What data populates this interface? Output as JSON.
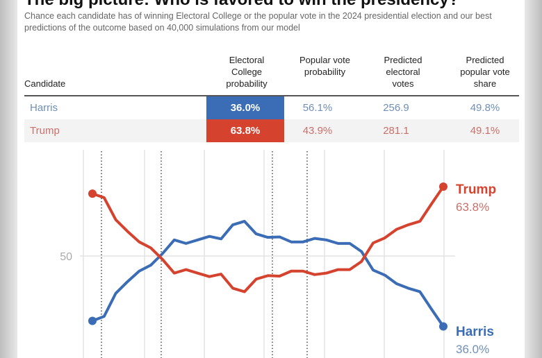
{
  "header": {
    "title": "The big picture: Who is favored to win the presidency?",
    "subtitle": "Chance each candidate has of winning Electoral College or the popular vote in the 2024 presidential election and our best predictions of the outcome based on 40,000 simulations from our model"
  },
  "table": {
    "columns": [
      "Candidate",
      "Electoral College probability",
      "Popular vote probability",
      "Predicted electoral votes",
      "Predicted popular vote share"
    ],
    "rows": [
      {
        "candidate": "Harris",
        "ec": "36.0%",
        "pv": "56.1%",
        "ev": "256.9",
        "share": "49.8%"
      },
      {
        "candidate": "Trump",
        "ec": "63.8%",
        "pv": "43.9%",
        "ev": "281.1",
        "share": "49.1%"
      }
    ]
  },
  "colors": {
    "harris": "#3a6db5",
    "trump": "#d5432f",
    "harris_text": "#6f8fb5",
    "trump_text": "#c9706a"
  },
  "chart_data": {
    "type": "line",
    "ylabel": "",
    "y_tick_labels": [
      "50"
    ],
    "grid": true,
    "legend": "end-labels-right",
    "series": [
      {
        "name": "Harris",
        "end_label": "36.0%",
        "values": [
          37.1,
          38.0,
          42.6,
          44.9,
          47.0,
          48.2,
          50.5,
          53.2,
          52.5,
          53.2,
          53.9,
          53.4,
          56.2,
          56.9,
          54.4,
          53.7,
          53.8,
          52.8,
          52.8,
          53.5,
          53.2,
          52.5,
          52.5,
          50.9,
          47.2,
          46.2,
          44.5,
          43.6,
          42.9,
          39.4,
          36.0
        ]
      },
      {
        "name": "Trump",
        "end_label": "63.8%",
        "values": [
          62.4,
          61.6,
          57.2,
          54.9,
          52.8,
          51.6,
          49.3,
          46.6,
          47.3,
          46.6,
          45.9,
          46.4,
          43.6,
          42.9,
          45.4,
          46.1,
          46.0,
          47.0,
          47.0,
          46.3,
          46.6,
          47.3,
          47.3,
          48.9,
          52.6,
          53.6,
          55.3,
          56.2,
          56.9,
          60.4,
          63.8
        ]
      }
    ]
  }
}
